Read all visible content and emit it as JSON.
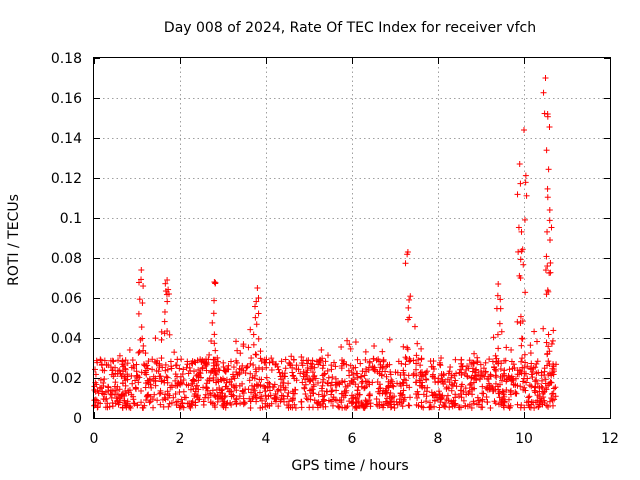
{
  "chart_data": {
    "type": "scatter",
    "title": "Day 008 of 2024, Rate Of TEC Index for receiver vfch",
    "xlabel": "GPS time / hours",
    "ylabel": "ROTI / TECUs",
    "xlim": [
      0,
      12
    ],
    "ylim": [
      0,
      0.18
    ],
    "xticks": [
      0,
      2,
      4,
      6,
      8,
      10,
      12
    ],
    "xtick_labels": [
      "0",
      "2",
      "4",
      "6",
      "8",
      "10",
      "12"
    ],
    "yticks": [
      0,
      0.02,
      0.04,
      0.06,
      0.08,
      0.1,
      0.12,
      0.14,
      0.16,
      0.18
    ],
    "ytick_labels": [
      "0",
      "0.02",
      "0.04",
      "0.06",
      "0.08",
      "0.1",
      "0.12",
      "0.14",
      "0.16",
      "0.18"
    ],
    "grid": true,
    "marker": "+",
    "marker_color": "#ff0000",
    "series": [
      {
        "name": "ROTI",
        "x_range": [
          0,
          10.75
        ],
        "baseline_band": [
          0.005,
          0.03
        ],
        "notable_points": [
          {
            "x": 1.1,
            "y": 0.074
          },
          {
            "x": 1.7,
            "y": 0.069
          },
          {
            "x": 2.8,
            "y": 0.068
          },
          {
            "x": 3.8,
            "y": 0.065
          },
          {
            "x": 7.3,
            "y": 0.083
          },
          {
            "x": 9.4,
            "y": 0.067
          },
          {
            "x": 9.9,
            "y": 0.127
          },
          {
            "x": 10.0,
            "y": 0.144
          },
          {
            "x": 10.5,
            "y": 0.17
          },
          {
            "x": 10.55,
            "y": 0.152
          },
          {
            "x": 10.6,
            "y": 0.104
          }
        ]
      }
    ]
  }
}
